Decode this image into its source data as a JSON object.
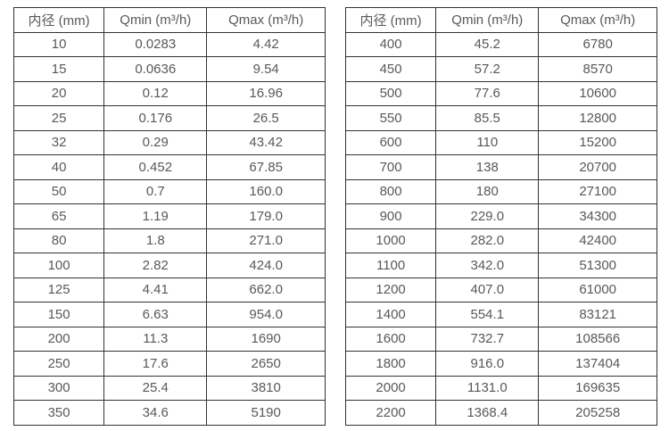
{
  "colors": {
    "border": "#333333",
    "text": "#595959",
    "background": "#ffffff"
  },
  "tables": [
    {
      "name": "small-diameter-flow-table",
      "headers": [
        "内径 (mm)",
        "Qmin (m³/h)",
        "Qmax (m³/h)"
      ],
      "rows": [
        [
          "10",
          "0.0283",
          "4.42"
        ],
        [
          "15",
          "0.0636",
          "9.54"
        ],
        [
          "20",
          "0.12",
          "16.96"
        ],
        [
          "25",
          "0.176",
          "26.5"
        ],
        [
          "32",
          "0.29",
          "43.42"
        ],
        [
          "40",
          "0.452",
          "67.85"
        ],
        [
          "50",
          "0.7",
          "160.0"
        ],
        [
          "65",
          "1.19",
          "179.0"
        ],
        [
          "80",
          "1.8",
          "271.0"
        ],
        [
          "100",
          "2.82",
          "424.0"
        ],
        [
          "125",
          "4.41",
          "662.0"
        ],
        [
          "150",
          "6.63",
          "954.0"
        ],
        [
          "200",
          "11.3",
          "1690"
        ],
        [
          "250",
          "17.6",
          "2650"
        ],
        [
          "300",
          "25.4",
          "3810"
        ],
        [
          "350",
          "34.6",
          "5190"
        ]
      ]
    },
    {
      "name": "large-diameter-flow-table",
      "headers": [
        "内径 (mm)",
        "Qmin (m³/h)",
        "Qmax (m³/h)"
      ],
      "rows": [
        [
          "400",
          "45.2",
          "6780"
        ],
        [
          "450",
          "57.2",
          "8570"
        ],
        [
          "500",
          "77.6",
          "10600"
        ],
        [
          "550",
          "85.5",
          "12800"
        ],
        [
          "600",
          "110",
          "15200"
        ],
        [
          "700",
          "138",
          "20700"
        ],
        [
          "800",
          "180",
          "27100"
        ],
        [
          "900",
          "229.0",
          "34300"
        ],
        [
          "1000",
          "282.0",
          "42400"
        ],
        [
          "1100",
          "342.0",
          "51300"
        ],
        [
          "1200",
          "407.0",
          "61000"
        ],
        [
          "1400",
          "554.1",
          "83121"
        ],
        [
          "1600",
          "732.7",
          "108566"
        ],
        [
          "1800",
          "916.0",
          "137404"
        ],
        [
          "2000",
          "1131.0",
          "169635"
        ],
        [
          "2200",
          "1368.4",
          "205258"
        ]
      ]
    }
  ]
}
